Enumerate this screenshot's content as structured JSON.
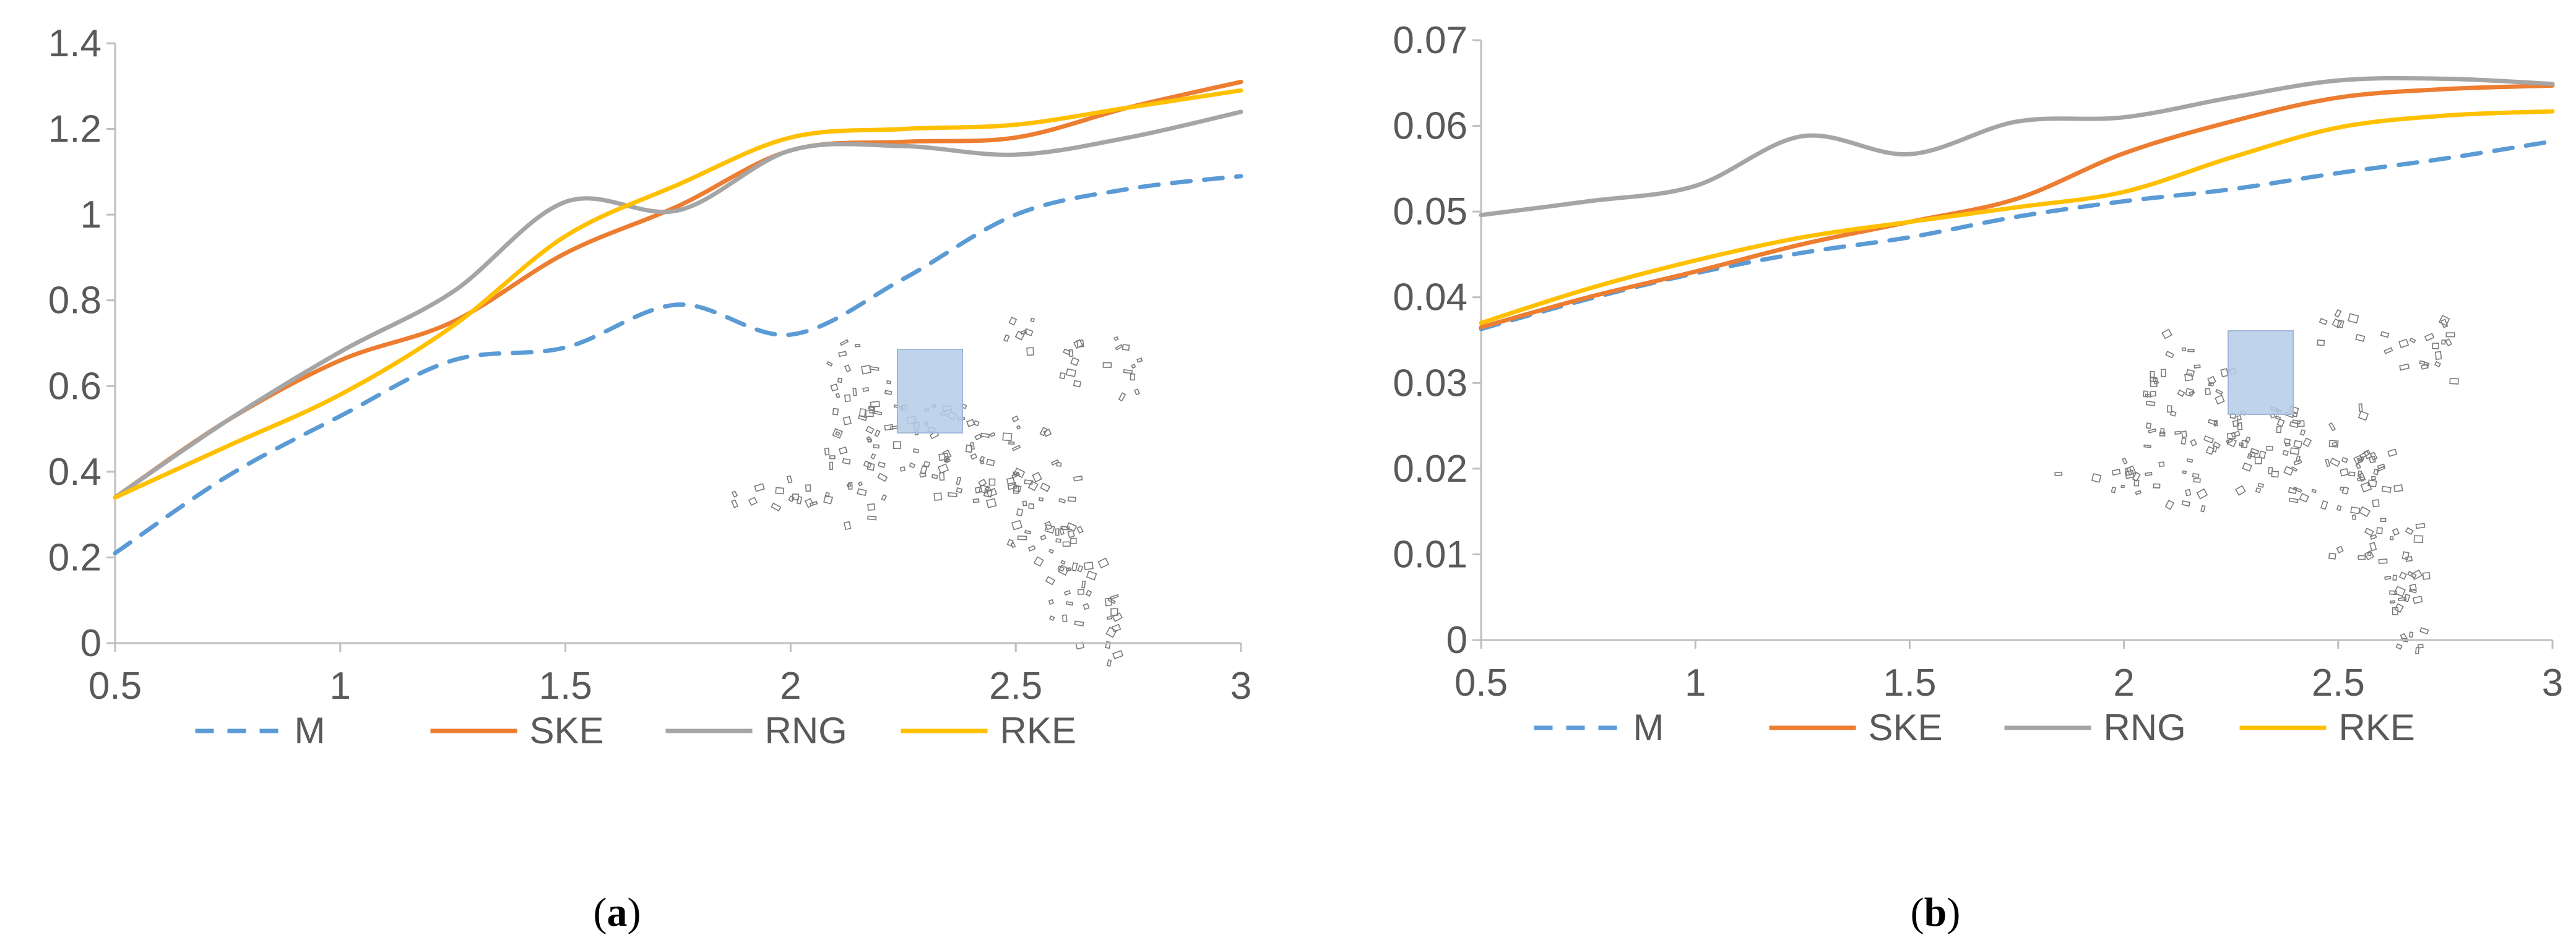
{
  "chart_data": [
    {
      "type": "line",
      "panel_label": "a",
      "x": [
        0.5,
        0.75,
        1,
        1.25,
        1.5,
        1.75,
        2,
        2.25,
        2.5,
        2.75,
        3
      ],
      "xticks": [
        "0.5",
        "1",
        "1.5",
        "2",
        "2.5",
        "3"
      ],
      "xlim": [
        0.5,
        3
      ],
      "yticks": [
        "0",
        "0.2",
        "0.4",
        "0.6",
        "0.8",
        "1",
        "1.2",
        "1.4"
      ],
      "ylim": [
        0,
        1.4
      ],
      "grid": false,
      "legend_position": "bottom",
      "series": [
        {
          "name": "M",
          "color": "#5b9bd5",
          "dash": true,
          "values": [
            0.21,
            0.39,
            0.53,
            0.66,
            0.69,
            0.79,
            0.72,
            0.85,
            1.0,
            1.06,
            1.09
          ]
        },
        {
          "name": "SKE",
          "color": "#ed7d31",
          "dash": false,
          "values": [
            0.34,
            0.52,
            0.66,
            0.75,
            0.91,
            1.02,
            1.15,
            1.17,
            1.18,
            1.25,
            1.31
          ]
        },
        {
          "name": "RNG",
          "color": "#a5a5a5",
          "dash": false,
          "values": [
            0.34,
            0.52,
            0.68,
            0.82,
            1.03,
            1.01,
            1.15,
            1.16,
            1.14,
            1.18,
            1.24
          ]
        },
        {
          "name": "RKE",
          "color": "#ffc000",
          "dash": false,
          "values": [
            0.34,
            0.46,
            0.58,
            0.74,
            0.95,
            1.07,
            1.18,
            1.2,
            1.21,
            1.25,
            1.29
          ]
        }
      ]
    },
    {
      "type": "line",
      "panel_label": "b",
      "x": [
        0.5,
        0.75,
        1,
        1.25,
        1.5,
        1.75,
        2,
        2.25,
        2.5,
        2.75,
        3
      ],
      "xticks": [
        "0.5",
        "1",
        "1.5",
        "2",
        "2.5",
        "3"
      ],
      "xlim": [
        0.5,
        3
      ],
      "yticks": [
        "0",
        "0.01",
        "0.02",
        "0.03",
        "0.04",
        "0.05",
        "0.06",
        "0.07"
      ],
      "ylim": [
        0,
        0.07
      ],
      "grid": false,
      "legend_position": "bottom",
      "series": [
        {
          "name": "M",
          "color": "#5b9bd5",
          "dash": true,
          "values": [
            0.0363,
            0.0398,
            0.0428,
            0.0452,
            0.047,
            0.0494,
            0.0512,
            0.0526,
            0.0545,
            0.0562,
            0.0582
          ]
        },
        {
          "name": "SKE",
          "color": "#ed7d31",
          "dash": false,
          "values": [
            0.0365,
            0.04,
            0.043,
            0.0462,
            0.0488,
            0.0515,
            0.0568,
            0.0605,
            0.0633,
            0.0643,
            0.0647
          ]
        },
        {
          "name": "RNG",
          "color": "#a5a5a5",
          "dash": false,
          "values": [
            0.0496,
            0.0512,
            0.053,
            0.0588,
            0.0567,
            0.0605,
            0.061,
            0.0633,
            0.0653,
            0.0655,
            0.0649
          ]
        },
        {
          "name": "RKE",
          "color": "#ffc000",
          "dash": false,
          "values": [
            0.037,
            0.041,
            0.0443,
            0.047,
            0.0488,
            0.0505,
            0.0523,
            0.0563,
            0.0598,
            0.0612,
            0.0617
          ]
        }
      ]
    }
  ],
  "inset_colors": {
    "highlight_fill": "#b4cbe8",
    "highlight_stroke": "#9fb8d9",
    "building_stroke": "#7a7a7a"
  },
  "captions": {
    "a": "a",
    "b": "b"
  }
}
